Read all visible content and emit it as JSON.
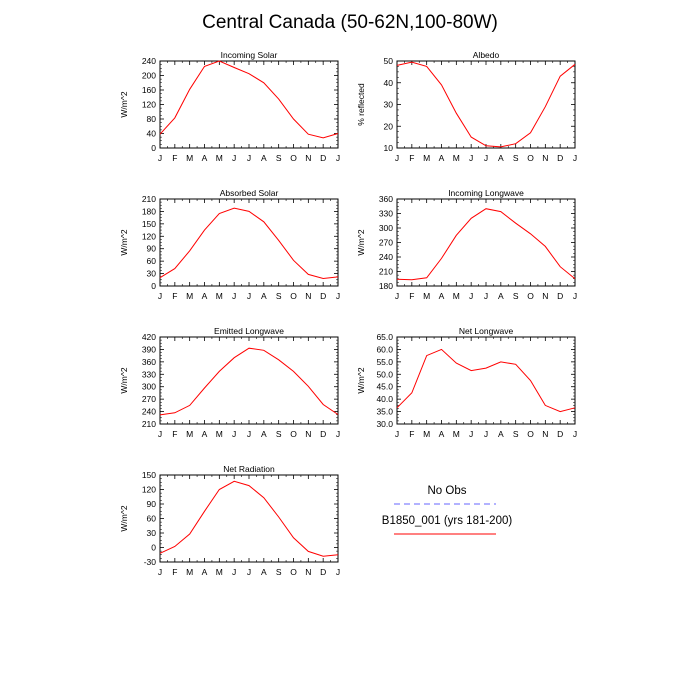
{
  "page": {
    "title": "Central Canada (50-62N,100-80W)"
  },
  "months": [
    "J",
    "F",
    "M",
    "A",
    "M",
    "J",
    "J",
    "A",
    "S",
    "O",
    "N",
    "D",
    "J"
  ],
  "legend": {
    "entries": [
      {
        "label": "No Obs",
        "color": "#6666ff",
        "dash": true
      },
      {
        "label": "B1850_001 (yrs 181-200)",
        "color": "#ff0000",
        "dash": false
      }
    ]
  },
  "chart_data": [
    {
      "type": "line",
      "title": "Incoming Solar",
      "ylabel": "W/m^2",
      "ylim": [
        0,
        240
      ],
      "yticks": [
        "0",
        "40",
        "80",
        "120",
        "160",
        "200",
        "240"
      ],
      "x": [
        "J",
        "F",
        "M",
        "A",
        "M",
        "J",
        "J",
        "A",
        "S",
        "O",
        "N",
        "D",
        "J"
      ],
      "series": [
        {
          "color": "#ff0000",
          "values": [
            38,
            83,
            162,
            225,
            240,
            222,
            205,
            180,
            135,
            80,
            38,
            28,
            40
          ]
        }
      ]
    },
    {
      "type": "line",
      "title": "Albedo",
      "ylabel": "% reflected",
      "ylim": [
        10,
        50
      ],
      "yticks": [
        "10",
        "20",
        "30",
        "40",
        "50"
      ],
      "x": [
        "J",
        "F",
        "M",
        "A",
        "M",
        "J",
        "J",
        "A",
        "S",
        "O",
        "N",
        "D",
        "J"
      ],
      "series": [
        {
          "color": "#ff0000",
          "values": [
            48,
            49.5,
            47.5,
            39,
            26,
            15,
            11,
            10.5,
            12,
            17,
            29,
            43,
            48.5
          ]
        }
      ]
    },
    {
      "type": "line",
      "title": "Absorbed Solar",
      "ylabel": "W/m^2",
      "ylim": [
        0,
        210
      ],
      "yticks": [
        "0",
        "30",
        "60",
        "90",
        "120",
        "150",
        "180",
        "210"
      ],
      "x": [
        "J",
        "F",
        "M",
        "A",
        "M",
        "J",
        "J",
        "A",
        "S",
        "O",
        "N",
        "D",
        "J"
      ],
      "series": [
        {
          "color": "#ff0000",
          "values": [
            20,
            42,
            85,
            135,
            175,
            188,
            180,
            155,
            110,
            62,
            28,
            18,
            22
          ]
        }
      ]
    },
    {
      "type": "line",
      "title": "Incoming Longwave",
      "ylabel": "W/m^2",
      "ylim": [
        180,
        360
      ],
      "yticks": [
        "180",
        "210",
        "240",
        "270",
        "300",
        "330",
        "360"
      ],
      "x": [
        "J",
        "F",
        "M",
        "A",
        "M",
        "J",
        "J",
        "A",
        "S",
        "O",
        "N",
        "D",
        "J"
      ],
      "series": [
        {
          "color": "#ff0000",
          "values": [
            194,
            193,
            197,
            237,
            285,
            320,
            340,
            334,
            310,
            288,
            262,
            220,
            195
          ]
        }
      ]
    },
    {
      "type": "line",
      "title": "Emitted Longwave",
      "ylabel": "W/m^2",
      "ylim": [
        210,
        420
      ],
      "yticks": [
        "210",
        "240",
        "270",
        "300",
        "330",
        "360",
        "390",
        "420"
      ],
      "x": [
        "J",
        "F",
        "M",
        "A",
        "M",
        "J",
        "J",
        "A",
        "S",
        "O",
        "N",
        "D",
        "J"
      ],
      "series": [
        {
          "color": "#ff0000",
          "values": [
            232,
            237,
            255,
            297,
            337,
            370,
            393,
            388,
            365,
            337,
            301,
            257,
            233
          ]
        }
      ]
    },
    {
      "type": "line",
      "title": "Net Longwave",
      "ylabel": "W/m^2",
      "ylim": [
        30,
        65
      ],
      "yticks": [
        "30.0",
        "35.0",
        "40.0",
        "45.0",
        "50.0",
        "55.0",
        "60.0",
        "65.0"
      ],
      "x": [
        "J",
        "F",
        "M",
        "A",
        "M",
        "J",
        "J",
        "A",
        "S",
        "O",
        "N",
        "D",
        "J"
      ],
      "series": [
        {
          "color": "#ff0000",
          "values": [
            36.5,
            42.5,
            57.5,
            60,
            54.5,
            51.5,
            52.5,
            55,
            54,
            47.5,
            37.5,
            35,
            36.5
          ]
        }
      ]
    },
    {
      "type": "line",
      "title": "Net Radiation",
      "ylabel": "W/m^2",
      "ylim": [
        -30,
        150
      ],
      "yticks": [
        "-30",
        "0",
        "30",
        "60",
        "90",
        "120",
        "150"
      ],
      "x": [
        "J",
        "F",
        "M",
        "A",
        "M",
        "J",
        "J",
        "A",
        "S",
        "O",
        "N",
        "D",
        "J"
      ],
      "series": [
        {
          "color": "#ff0000",
          "values": [
            -12,
            2,
            28,
            75,
            120,
            137,
            128,
            103,
            63,
            20,
            -8,
            -18,
            -15
          ]
        }
      ]
    }
  ]
}
